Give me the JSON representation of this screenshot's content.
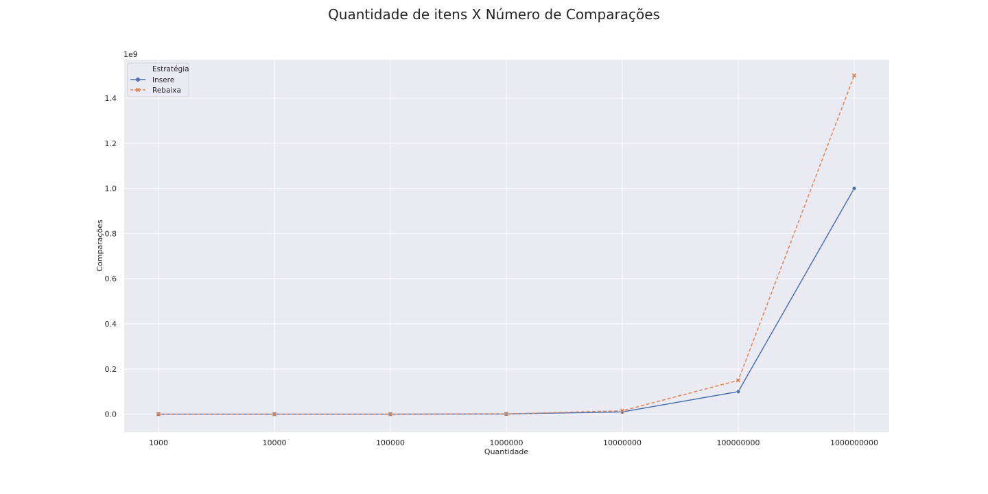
{
  "chart_data": {
    "type": "line",
    "title": "Quantidade de itens X Número de Comparações",
    "xlabel": "Quantidade",
    "ylabel": "Comparações",
    "y_offset_label": "1e9",
    "categories": [
      "1000",
      "10000",
      "100000",
      "1000000",
      "10000000",
      "100000000",
      "1000000000"
    ],
    "yticks": [
      "0.0",
      "0.2",
      "0.4",
      "0.6",
      "0.8",
      "1.0",
      "1.2",
      "1.4"
    ],
    "ylim": [
      -0.08,
      1.57
    ],
    "y_scale": 1000000000,
    "grid": true,
    "legend": {
      "title": "Estratégia",
      "placement": "top-left"
    },
    "series": [
      {
        "name": "Insere",
        "color": "#4c72b0",
        "marker": "circle",
        "dash": "solid",
        "values": [
          1000,
          10000,
          100000,
          1000000,
          10000000,
          100000000,
          1000000000
        ]
      },
      {
        "name": "Rebaixa",
        "color": "#dd8452",
        "marker": "x",
        "dash": "dashed",
        "values": [
          1500,
          15000,
          150000,
          1500000,
          15000000,
          150000000,
          1500000000
        ]
      }
    ],
    "colors": {
      "plot_background": "#eaeaf2",
      "grid": "#ffffff"
    }
  }
}
